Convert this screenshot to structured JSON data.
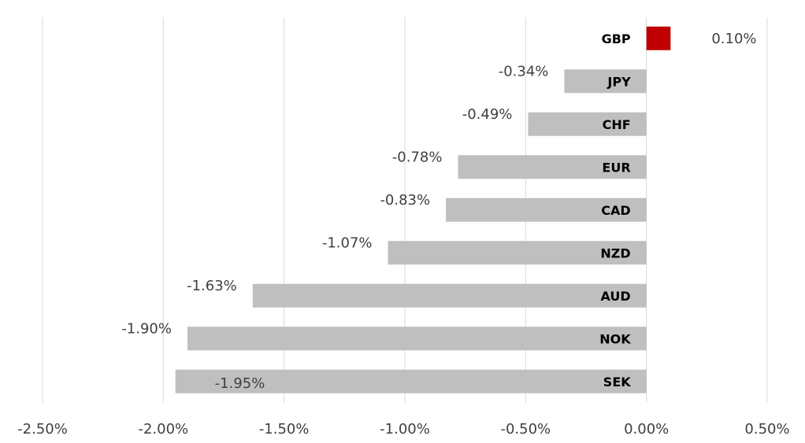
{
  "chart_data": {
    "type": "bar",
    "orientation": "horizontal",
    "categories": [
      "GBP",
      "JPY",
      "CHF",
      "EUR",
      "CAD",
      "NZD",
      "AUD",
      "NOK",
      "SEK"
    ],
    "values": [
      0.1,
      -0.34,
      -0.49,
      -0.78,
      -0.83,
      -1.07,
      -1.63,
      -1.9,
      -1.95
    ],
    "data_labels": [
      "0.10%",
      "-0.34%",
      "-0.49%",
      "-0.78%",
      "-0.83%",
      "-1.07%",
      "-1.63%",
      "-1.90%",
      "-1.95%"
    ],
    "x_ticks": [
      -2.5,
      -2.0,
      -1.5,
      -1.0,
      -0.5,
      0.0,
      0.5
    ],
    "x_tick_labels": [
      "-2.50%",
      "-2.00%",
      "-1.50%",
      "-1.00%",
      "-0.50%",
      "0.00%",
      "0.50%"
    ],
    "xlim": [
      -2.5,
      0.5
    ],
    "title": "",
    "xlabel": "",
    "ylabel": "",
    "grid": "vertical",
    "legend": "none",
    "colors": {
      "positive": "#c00000",
      "negative": "#bfbfbf",
      "grid": "#d9d9d9"
    }
  }
}
